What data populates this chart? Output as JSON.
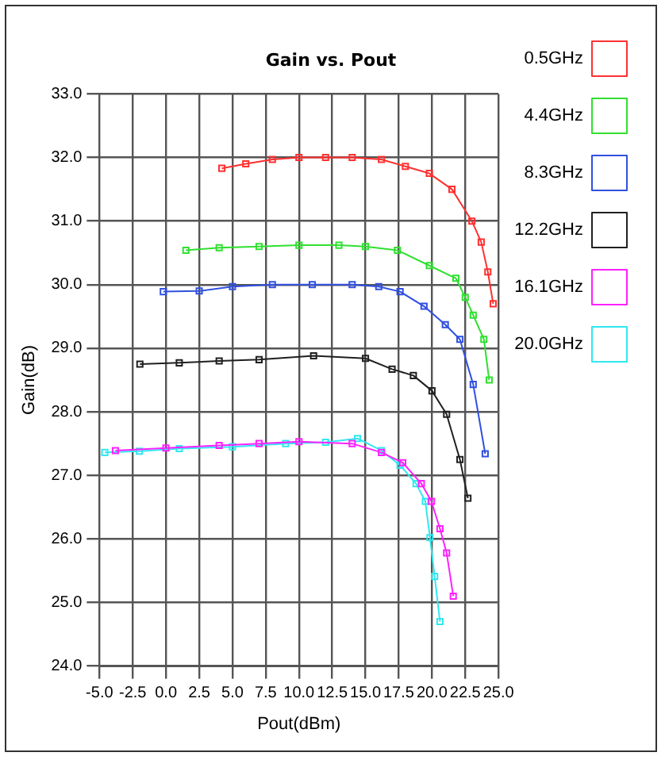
{
  "chart_data": {
    "type": "line",
    "title": "Gain vs. Pout",
    "xlabel": "Pout(dBm)",
    "ylabel": "Gain(dB)",
    "xlim": [
      -5,
      25
    ],
    "ylim": [
      24,
      33
    ],
    "xticks": [
      {
        "value": -5,
        "label": "-5.0"
      },
      {
        "value": -2.5,
        "label": "-2.5"
      },
      {
        "value": 0,
        "label": "0.0"
      },
      {
        "value": 2.5,
        "label": "2.5"
      },
      {
        "value": 5,
        "label": "5.0"
      },
      {
        "value": 7.5,
        "label": "7.5"
      },
      {
        "value": 10,
        "label": "10.0"
      },
      {
        "value": 12.5,
        "label": "12.5"
      },
      {
        "value": 15,
        "label": "15.0"
      },
      {
        "value": 17.5,
        "label": "17.5"
      },
      {
        "value": 20,
        "label": "20.0"
      },
      {
        "value": 22.5,
        "label": "22.5"
      },
      {
        "value": 25,
        "label": "25.0"
      }
    ],
    "yticks": [
      {
        "value": 24,
        "label": "24.0"
      },
      {
        "value": 25,
        "label": "25.0"
      },
      {
        "value": 26,
        "label": "26.0"
      },
      {
        "value": 27,
        "label": "27.0"
      },
      {
        "value": 28,
        "label": "28.0"
      },
      {
        "value": 29,
        "label": "29.0"
      },
      {
        "value": 30,
        "label": "30.0"
      },
      {
        "value": 31,
        "label": "31.0"
      },
      {
        "value": 32,
        "label": "32.0"
      },
      {
        "value": 33,
        "label": "33.0"
      }
    ],
    "grid": true,
    "legend": "right",
    "marker": "square",
    "line_style": "solid",
    "series": [
      {
        "name": "0.5GHz",
        "color": "#ff3030",
        "x": [
          4.2,
          6,
          8,
          10,
          12,
          14,
          16.2,
          18,
          19.8,
          21.5,
          23,
          23.7,
          24.2,
          24.6
        ],
        "values": [
          31.83,
          31.9,
          31.97,
          32.0,
          32.0,
          32.0,
          31.97,
          31.86,
          31.75,
          31.5,
          31.0,
          30.67,
          30.2,
          29.7
        ]
      },
      {
        "name": "4.4GHz",
        "color": "#30e030",
        "x": [
          1.5,
          4,
          7,
          10,
          13,
          15,
          17.4,
          19.8,
          21.8,
          22.5,
          23.1,
          23.9,
          24.3
        ],
        "values": [
          30.54,
          30.58,
          30.6,
          30.62,
          30.62,
          30.6,
          30.54,
          30.3,
          30.1,
          29.8,
          29.52,
          29.14,
          28.5
        ]
      },
      {
        "name": "8.3GHz",
        "color": "#3050e0",
        "x": [
          -0.2,
          2.5,
          5,
          8,
          11,
          14,
          16,
          17.6,
          19.4,
          21,
          22.1,
          23.1,
          24.0
        ],
        "values": [
          29.89,
          29.9,
          29.97,
          30.0,
          30.0,
          30.0,
          29.97,
          29.89,
          29.66,
          29.37,
          29.14,
          28.43,
          27.34
        ]
      },
      {
        "name": "12.2GHz",
        "color": "#202020",
        "x": [
          -1.96,
          1,
          4,
          7,
          11.1,
          15,
          17.0,
          18.6,
          20.0,
          21.1,
          22.1,
          22.7
        ],
        "values": [
          28.75,
          28.77,
          28.8,
          28.82,
          28.88,
          28.84,
          28.67,
          28.57,
          28.33,
          27.96,
          27.25,
          26.64
        ]
      },
      {
        "name": "16.1GHz",
        "color": "#ff20ff",
        "x": [
          -3.8,
          0,
          4,
          7,
          10,
          14,
          16.2,
          17.8,
          19.2,
          19.96,
          20.6,
          21.1,
          21.6
        ],
        "values": [
          27.39,
          27.43,
          27.47,
          27.5,
          27.53,
          27.5,
          27.36,
          27.2,
          26.87,
          26.59,
          26.16,
          25.78,
          25.1
        ]
      },
      {
        "name": "20.0GHz",
        "color": "#30e8f0",
        "x": [
          -4.6,
          -2,
          1,
          5,
          9,
          12,
          14.4,
          16.2,
          17.6,
          18.8,
          19.5,
          19.85,
          20.2,
          20.6
        ],
        "values": [
          27.36,
          27.38,
          27.42,
          27.45,
          27.5,
          27.52,
          27.58,
          27.39,
          27.16,
          26.87,
          26.59,
          26.02,
          25.41,
          24.7
        ]
      }
    ]
  }
}
